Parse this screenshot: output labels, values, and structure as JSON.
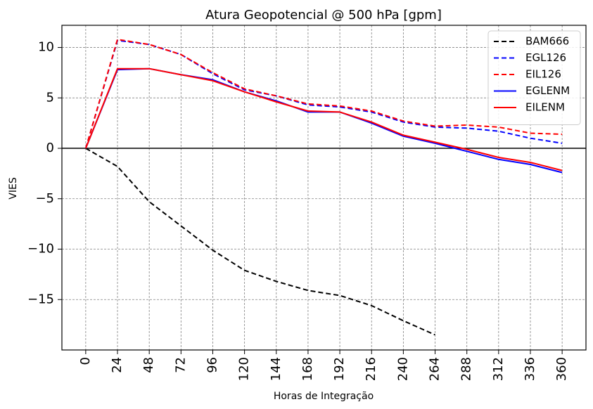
{
  "chart_data": {
    "type": "line",
    "title": "Atura Geopotencial @ 500 hPa [gpm]",
    "xlabel": "Horas de Integração",
    "ylabel": "VIES",
    "x": [
      0,
      24,
      48,
      72,
      96,
      120,
      144,
      168,
      192,
      216,
      240,
      264,
      288,
      312,
      336,
      360
    ],
    "x_tick_labels": [
      "0",
      "24",
      "48",
      "72",
      "96",
      "120",
      "144",
      "168",
      "192",
      "216",
      "240",
      "264",
      "288",
      "312",
      "336",
      "360"
    ],
    "xlim": [
      -18,
      378
    ],
    "ylim": [
      -20,
      12.2
    ],
    "y_ticks": [
      10,
      5,
      0,
      -5,
      -10,
      -15
    ],
    "y_tick_labels": [
      "10",
      "5",
      "0",
      "−5",
      "−10",
      "−15"
    ],
    "grid": true,
    "zero_line": true,
    "legend_position": "top-right",
    "series": [
      {
        "name": "BAM666",
        "color": "#000000",
        "dash": true,
        "values": [
          0,
          -1.8,
          -5.3,
          -7.7,
          -10.1,
          -12.1,
          -13.2,
          -14.1,
          -14.6,
          -15.6,
          -17.1,
          -18.5,
          null,
          null,
          null,
          null
        ]
      },
      {
        "name": "EGL126",
        "color": "#0000ff",
        "dash": true,
        "values": [
          0,
          10.7,
          10.3,
          9.3,
          7.4,
          5.8,
          5.2,
          4.3,
          4.1,
          3.6,
          2.6,
          2.1,
          2.0,
          1.7,
          1.0,
          0.5
        ]
      },
      {
        "name": "EIL126",
        "color": "#ff0000",
        "dash": true,
        "values": [
          0,
          10.8,
          10.3,
          9.3,
          7.5,
          5.9,
          5.2,
          4.4,
          4.2,
          3.7,
          2.7,
          2.2,
          2.3,
          2.1,
          1.5,
          1.4
        ]
      },
      {
        "name": "EGLENM",
        "color": "#0000ff",
        "dash": false,
        "values": [
          0,
          7.8,
          7.9,
          7.3,
          6.8,
          5.6,
          4.7,
          3.6,
          3.6,
          2.5,
          1.2,
          0.5,
          -0.3,
          -1.1,
          -1.6,
          -2.4
        ]
      },
      {
        "name": "EILENM",
        "color": "#ff0000",
        "dash": false,
        "values": [
          0,
          7.9,
          7.9,
          7.3,
          6.7,
          5.6,
          4.6,
          3.7,
          3.6,
          2.6,
          1.3,
          0.6,
          -0.1,
          -0.9,
          -1.4,
          -2.2
        ]
      }
    ]
  }
}
